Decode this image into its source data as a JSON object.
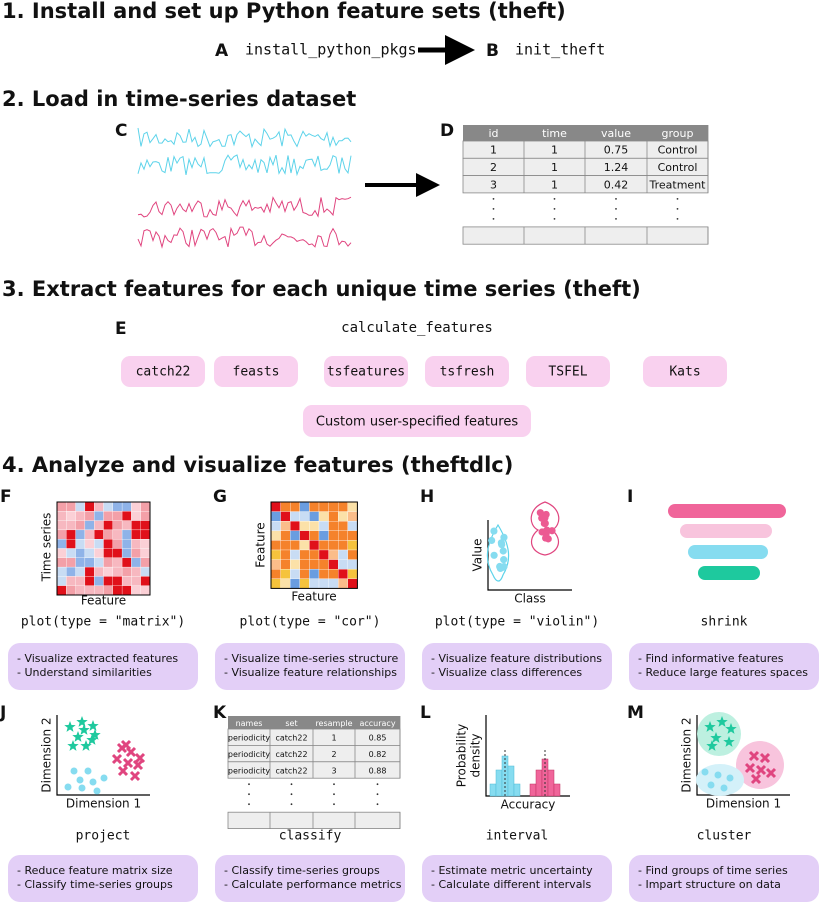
{
  "sections": [
    "1. Install and set up Python feature sets (theft)",
    "2. Load in time-series dataset",
    "3. Extract features for each unique time series (theft)",
    "4. Analyze and visualize features (theftdlc)"
  ],
  "step1": {
    "a": {
      "letter": "A",
      "code": "install_python_pkgs"
    },
    "b": {
      "letter": "B",
      "code": "init_theft"
    }
  },
  "step2": {
    "c_letter": "C",
    "d_letter": "D",
    "table": {
      "header": [
        "id",
        "time",
        "value",
        "group"
      ],
      "rows": [
        [
          1,
          1,
          0.75,
          "Control"
        ],
        [
          2,
          1,
          1.24,
          "Control"
        ],
        [
          3,
          1,
          0.42,
          "Treatment"
        ]
      ]
    }
  },
  "step3": {
    "letter": "E",
    "function": "calculate_features",
    "feature_sets": [
      "catch22",
      "feasts",
      "tsfeatures",
      "tsfresh",
      "TSFEL",
      "Kats"
    ],
    "custom": "Custom user-specified features"
  },
  "panels": [
    {
      "letter": "F",
      "y_label": [
        "Time series"
      ],
      "x_label": "Feature",
      "code": "plot(type = \"matrix\")",
      "bullets": [
        "- Visualize extracted features",
        "- Understand similarities"
      ]
    },
    {
      "letter": "G",
      "y_label": [
        "Feature"
      ],
      "x_label": "Feature",
      "code": "plot(type = \"cor\")",
      "bullets": [
        "- Visualize time-series structure",
        "- Visualize feature relationships"
      ]
    },
    {
      "letter": "H",
      "y_label": [
        "Value"
      ],
      "x_label": "Class",
      "code": "plot(type = \"violin\")",
      "bullets": [
        "- Visualize feature distributions",
        "- Visualize class differences"
      ]
    },
    {
      "letter": "I",
      "code": "shrink",
      "bullets": [
        "- Find informative features",
        "- Reduce large features spaces"
      ]
    },
    {
      "letter": "J",
      "y_label": [
        "Dimension 2"
      ],
      "x_label": "Dimension 1",
      "code": "project",
      "bullets": [
        "- Reduce feature matrix size",
        "- Classify time-series groups"
      ]
    },
    {
      "letter": "K",
      "code": "classify",
      "bullets": [
        "- Classify time-series groups",
        "- Calculate performance metrics"
      ],
      "table": {
        "header": [
          "names",
          "set",
          "resample",
          "accuracy"
        ],
        "rows": [
          [
            "periodicity",
            "catch22",
            1,
            0.85
          ],
          [
            "periodicity",
            "catch22",
            2,
            0.82
          ],
          [
            "periodicity",
            "catch22",
            3,
            0.88
          ]
        ]
      }
    },
    {
      "letter": "L",
      "y_label": [
        "Probability",
        "density"
      ],
      "x_label": "Accuracy",
      "code": "interval",
      "bullets": [
        "- Estimate metric uncertainty",
        "- Calculate different intervals"
      ]
    },
    {
      "letter": "M",
      "y_label": [
        "Dimension 2"
      ],
      "x_label": "Dimension 1",
      "code": "cluster",
      "bullets": [
        "- Find groups of time series",
        "- Impart structure on data"
      ]
    }
  ]
}
